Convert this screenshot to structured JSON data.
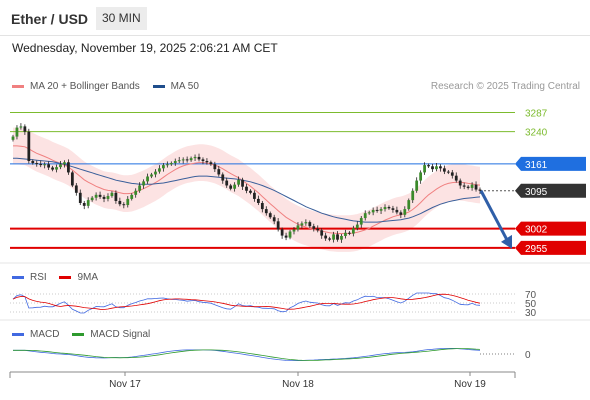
{
  "header": {
    "title": "Ether / USD",
    "timeframe": "30 MIN"
  },
  "datetime": "Wednesday, November 19, 2025 2:06:21 AM CET",
  "credit": "Research © 2025 Trading Central",
  "legend": {
    "main": [
      {
        "label": "MA 20 + Bollinger Bands",
        "color": "#f08080"
      },
      {
        "label": "MA 50",
        "color": "#1f4e8c"
      }
    ],
    "rsi": [
      {
        "label": "RSI",
        "color": "#4169e1"
      },
      {
        "label": "9MA",
        "color": "#e00000"
      }
    ],
    "macd": [
      {
        "label": "MACD",
        "color": "#4169e1"
      },
      {
        "label": "MACD Signal",
        "color": "#2e9a2e"
      }
    ]
  },
  "chart_data": {
    "type": "candlestick",
    "instrument": "Ether / USD",
    "interval": "30 MIN",
    "ylim": [
      2930,
      3330
    ],
    "levels": [
      {
        "value": 3287,
        "label": "3287",
        "kind": "resistance",
        "color": "#7cbb2e"
      },
      {
        "value": 3240,
        "label": "3240",
        "kind": "resistance",
        "color": "#7cbb2e"
      },
      {
        "value": 3161,
        "label": "3161",
        "kind": "pivot",
        "color": "#1f6fe0"
      },
      {
        "value": 3095,
        "label": "3095",
        "kind": "last",
        "color": "#333333"
      },
      {
        "value": 3002,
        "label": "3002",
        "kind": "support",
        "color": "#e00000"
      },
      {
        "value": 2955,
        "label": "2955",
        "kind": "support",
        "color": "#e00000"
      }
    ],
    "forecast_arrow": {
      "from": 3095,
      "to": 2955
    },
    "x_ticks": [
      "Nov 17",
      "Nov 18",
      "Nov 19"
    ],
    "close": [
      3228,
      3250,
      3253,
      3240,
      3168,
      3163,
      3161,
      3158,
      3160,
      3152,
      3147,
      3153,
      3160,
      3165,
      3140,
      3108,
      3090,
      3065,
      3058,
      3072,
      3078,
      3085,
      3080,
      3075,
      3082,
      3090,
      3070,
      3062,
      3060,
      3075,
      3085,
      3095,
      3108,
      3118,
      3130,
      3135,
      3142,
      3150,
      3158,
      3160,
      3163,
      3168,
      3170,
      3172,
      3170,
      3175,
      3178,
      3172,
      3168,
      3165,
      3160,
      3148,
      3135,
      3120,
      3108,
      3100,
      3110,
      3122,
      3105,
      3095,
      3090,
      3075,
      3065,
      3050,
      3040,
      3030,
      3020,
      3000,
      2985,
      2980,
      2995,
      3000,
      3010,
      3015,
      3018,
      3008,
      3002,
      2998,
      2985,
      2978,
      2975,
      2988,
      2975,
      2984,
      2992,
      2990,
      3003,
      3012,
      3028,
      3040,
      3042,
      3048,
      3046,
      3050,
      3055,
      3052,
      3048,
      3042,
      3036,
      3050,
      3072,
      3095,
      3120,
      3140,
      3158,
      3155,
      3148,
      3155,
      3150,
      3142,
      3140,
      3132,
      3120,
      3108,
      3105,
      3102,
      3110,
      3098,
      3095
    ],
    "ma20": [
      3205,
      3205,
      3204,
      3203,
      3198,
      3192,
      3187,
      3183,
      3179,
      3175,
      3170,
      3166,
      3162,
      3158,
      3153,
      3146,
      3138,
      3130,
      3122,
      3116,
      3111,
      3106,
      3102,
      3098,
      3096,
      3095,
      3093,
      3090,
      3088,
      3088,
      3089,
      3092,
      3096,
      3100,
      3105,
      3110,
      3115,
      3121,
      3128,
      3135,
      3141,
      3147,
      3152,
      3156,
      3159,
      3161,
      3163,
      3164,
      3164,
      3163,
      3161,
      3158,
      3154,
      3149,
      3143,
      3137,
      3132,
      3127,
      3120,
      3113,
      3106,
      3098,
      3090,
      3081,
      3072,
      3063,
      3055,
      3046,
      3038,
      3030,
      3024,
      3018,
      3013,
      3009,
      3006,
      3003,
      3000,
      2998,
      2996,
      2994,
      2992,
      2991,
      2990,
      2990,
      2990,
      2990,
      2991,
      2993,
      2996,
      2999,
      3003,
      3008,
      3013,
      3018,
      3023,
      3027,
      3031,
      3034,
      3036,
      3039,
      3043,
      3049,
      3057,
      3066,
      3076,
      3085,
      3092,
      3099,
      3105,
      3110,
      3113,
      3115,
      3116,
      3116,
      3115,
      3113,
      3112,
      3110,
      3109
    ],
    "ma50": [
      3175,
      3175,
      3174,
      3173,
      3172,
      3171,
      3170,
      3169,
      3168,
      3167,
      3166,
      3164,
      3162,
      3160,
      3157,
      3154,
      3151,
      3148,
      3145,
      3142,
      3139,
      3136,
      3133,
      3130,
      3127,
      3124,
      3121,
      3119,
      3117,
      3115,
      3113,
      3112,
      3111,
      3111,
      3111,
      3111,
      3112,
      3113,
      3114,
      3116,
      3118,
      3120,
      3122,
      3124,
      3126,
      3128,
      3130,
      3131,
      3131,
      3131,
      3130,
      3129,
      3128,
      3127,
      3126,
      3125,
      3124,
      3123,
      3121,
      3119,
      3117,
      3114,
      3111,
      3108,
      3104,
      3100,
      3096,
      3091,
      3086,
      3081,
      3076,
      3071,
      3066,
      3061,
      3056,
      3052,
      3048,
      3044,
      3040,
      3037,
      3034,
      3031,
      3029,
      3027,
      3025,
      3023,
      3021,
      3020,
      3019,
      3018,
      3018,
      3018,
      3018,
      3019,
      3020,
      3021,
      3022,
      3023,
      3024,
      3026,
      3028,
      3031,
      3035,
      3039,
      3044,
      3049,
      3054,
      3058,
      3062,
      3065,
      3068,
      3070,
      3072,
      3074,
      3076,
      3077,
      3078,
      3079,
      3080
    ],
    "rsi_ylim": [
      20,
      80
    ],
    "rsi_ticks": [
      70,
      50,
      30
    ],
    "macd_ticks": [
      0
    ]
  }
}
